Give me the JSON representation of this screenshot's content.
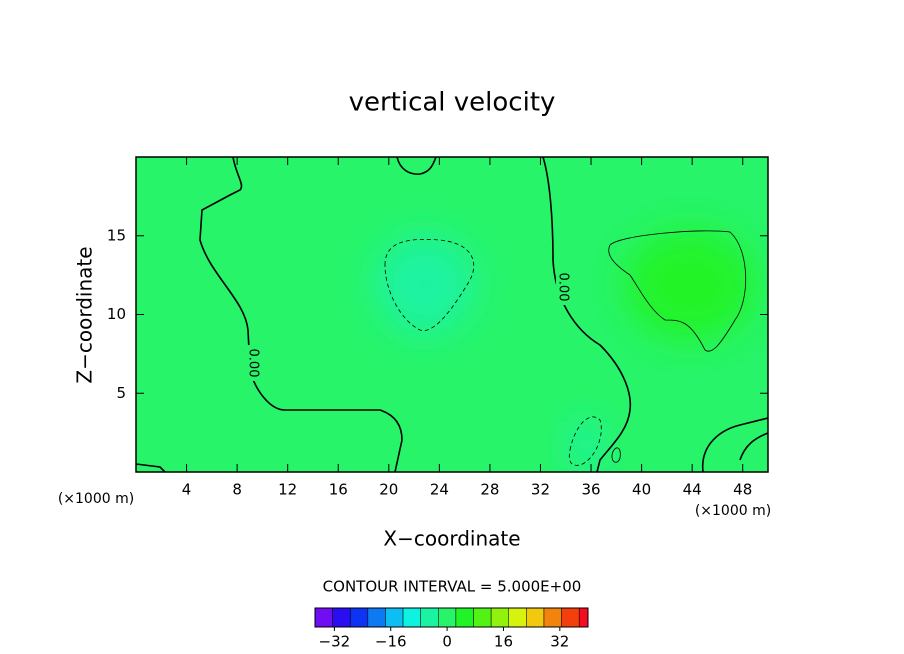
{
  "chart_data": {
    "type": "contour",
    "title": "vertical velocity",
    "x_label": "X−coordinate",
    "y_label": "Z−coordinate",
    "axis_unit_label": "(×1000 m)",
    "xlim": [
      0,
      50
    ],
    "xticks": [
      4,
      8,
      12,
      16,
      20,
      24,
      28,
      32,
      36,
      40,
      44,
      48
    ],
    "ylim": [
      0,
      20
    ],
    "yticks": [
      5,
      10,
      15
    ],
    "contour_levels": [
      -5,
      0,
      5
    ],
    "contour_level_labels": [
      null,
      "0.00",
      null
    ],
    "contour_interval": {
      "value": 5,
      "label": "CONTOUR INTERVAL = 5.000E+00"
    },
    "colorbar": {
      "lim": [
        -37.5,
        40
      ],
      "ticks": [
        {
          "value": -32,
          "label": "−32"
        },
        {
          "value": -16,
          "label": "−16"
        },
        0,
        16,
        32
      ]
    }
  }
}
